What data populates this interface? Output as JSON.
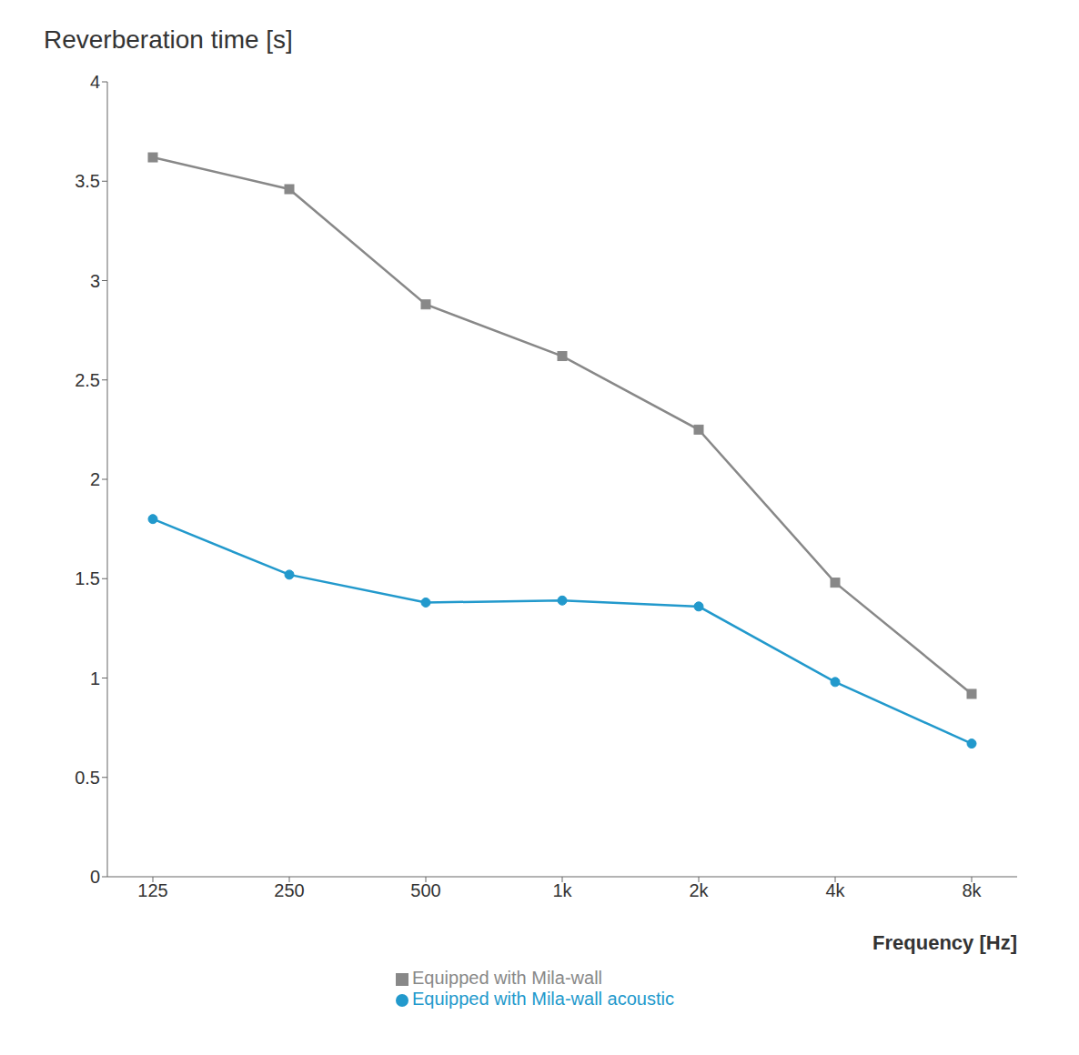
{
  "chart_data": {
    "type": "line",
    "title": "Reverberation time [s]",
    "xlabel": "Frequency [Hz]",
    "categories": [
      "125",
      "250",
      "500",
      "1k",
      "2k",
      "4k",
      "8k"
    ],
    "series": [
      {
        "name": "Equipped with Mila-wall",
        "color": "#888888",
        "marker": "square",
        "values": [
          3.62,
          3.46,
          2.88,
          2.62,
          2.25,
          1.48,
          0.92
        ]
      },
      {
        "name": "Equipped with Mila-wall acoustic",
        "color": "#2299cc",
        "marker": "circle",
        "values": [
          1.8,
          1.52,
          1.38,
          1.39,
          1.36,
          0.98,
          0.67
        ]
      }
    ],
    "ylim": [
      0,
      4
    ],
    "yticks": [
      0,
      0.5,
      1,
      1.5,
      2,
      2.5,
      3,
      3.5,
      4
    ],
    "grid": false,
    "legend": "bottom"
  }
}
